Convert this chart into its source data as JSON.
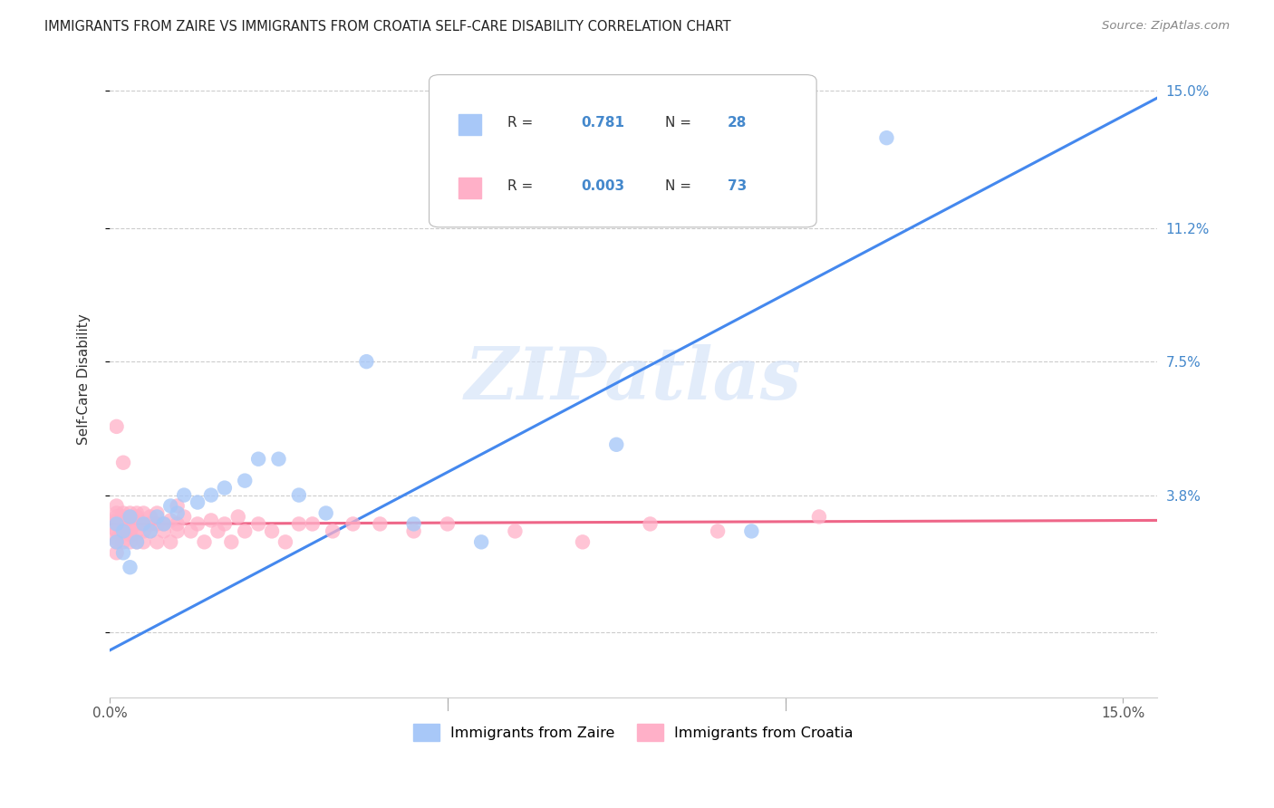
{
  "title": "IMMIGRANTS FROM ZAIRE VS IMMIGRANTS FROM CROATIA SELF-CARE DISABILITY CORRELATION CHART",
  "source": "Source: ZipAtlas.com",
  "ylabel": "Self-Care Disability",
  "zaire_label": "Immigrants from Zaire",
  "croatia_label": "Immigrants from Croatia",
  "zaire_R": "0.781",
  "zaire_N": "28",
  "croatia_R": "0.003",
  "croatia_N": "73",
  "zaire_color": "#a8c8f8",
  "croatia_color": "#ffb0c8",
  "zaire_line_color": "#4488ee",
  "croatia_line_color": "#ee6688",
  "watermark": "ZIPatlas",
  "background_color": "#ffffff",
  "grid_color": "#cccccc",
  "xlim": [
    0.0,
    0.155
  ],
  "ylim": [
    -0.018,
    0.158
  ],
  "ytick_vals": [
    0.0,
    0.038,
    0.075,
    0.112,
    0.15
  ],
  "ytick_labels_right": [
    "",
    "3.8%",
    "7.5%",
    "11.2%",
    "15.0%"
  ],
  "xtick_vals": [
    0.0,
    0.05,
    0.1,
    0.15
  ],
  "xtick_labels": [
    "0.0%",
    "",
    "",
    "15.0%"
  ],
  "zaire_x": [
    0.001,
    0.001,
    0.002,
    0.002,
    0.003,
    0.003,
    0.004,
    0.005,
    0.006,
    0.007,
    0.008,
    0.009,
    0.01,
    0.011,
    0.013,
    0.015,
    0.017,
    0.02,
    0.022,
    0.025,
    0.028,
    0.032,
    0.038,
    0.045,
    0.055,
    0.075,
    0.095,
    0.115
  ],
  "zaire_y": [
    0.025,
    0.03,
    0.022,
    0.028,
    0.018,
    0.032,
    0.025,
    0.03,
    0.028,
    0.032,
    0.03,
    0.035,
    0.033,
    0.038,
    0.036,
    0.038,
    0.04,
    0.042,
    0.048,
    0.048,
    0.038,
    0.033,
    0.075,
    0.03,
    0.025,
    0.052,
    0.028,
    0.137
  ],
  "croatia_x": [
    0.001,
    0.001,
    0.001,
    0.001,
    0.001,
    0.001,
    0.001,
    0.001,
    0.001,
    0.001,
    0.002,
    0.002,
    0.002,
    0.002,
    0.002,
    0.002,
    0.002,
    0.003,
    0.003,
    0.003,
    0.003,
    0.003,
    0.003,
    0.003,
    0.004,
    0.004,
    0.004,
    0.004,
    0.004,
    0.005,
    0.005,
    0.005,
    0.005,
    0.006,
    0.006,
    0.006,
    0.007,
    0.007,
    0.007,
    0.008,
    0.008,
    0.009,
    0.009,
    0.01,
    0.01,
    0.011,
    0.012,
    0.013,
    0.014,
    0.015,
    0.016,
    0.017,
    0.018,
    0.019,
    0.02,
    0.022,
    0.024,
    0.026,
    0.028,
    0.03,
    0.033,
    0.036,
    0.04,
    0.045,
    0.05,
    0.06,
    0.07,
    0.08,
    0.09,
    0.001,
    0.002,
    0.01,
    0.105
  ],
  "croatia_y": [
    0.031,
    0.028,
    0.025,
    0.033,
    0.03,
    0.028,
    0.026,
    0.032,
    0.035,
    0.022,
    0.029,
    0.031,
    0.028,
    0.033,
    0.03,
    0.025,
    0.032,
    0.028,
    0.03,
    0.033,
    0.025,
    0.027,
    0.031,
    0.028,
    0.03,
    0.032,
    0.028,
    0.033,
    0.025,
    0.028,
    0.03,
    0.033,
    0.025,
    0.03,
    0.028,
    0.032,
    0.025,
    0.03,
    0.033,
    0.028,
    0.03,
    0.025,
    0.031,
    0.028,
    0.03,
    0.032,
    0.028,
    0.03,
    0.025,
    0.031,
    0.028,
    0.03,
    0.025,
    0.032,
    0.028,
    0.03,
    0.028,
    0.025,
    0.03,
    0.03,
    0.028,
    0.03,
    0.03,
    0.028,
    0.03,
    0.028,
    0.025,
    0.03,
    0.028,
    0.057,
    0.047,
    0.035,
    0.032
  ],
  "zaire_line_x": [
    0.0,
    0.155
  ],
  "zaire_line_y": [
    -0.005,
    0.148
  ],
  "croatia_line_x": [
    0.0,
    0.155
  ],
  "croatia_line_y": [
    0.03,
    0.031
  ]
}
